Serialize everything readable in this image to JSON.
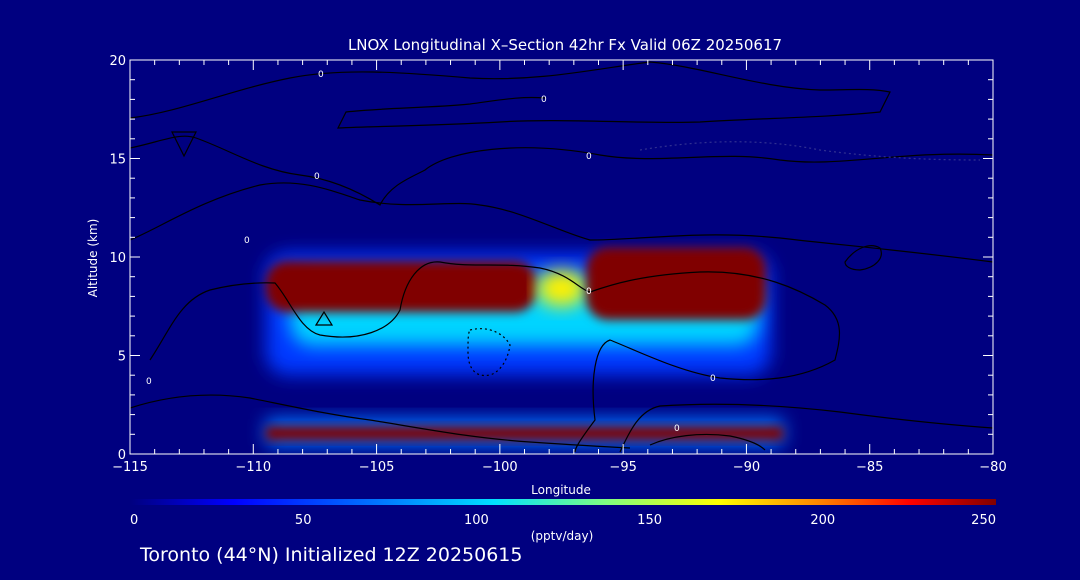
{
  "chart_data": {
    "type": "heatmap",
    "title": "LNOX Longitudinal X–Section 42hr  Fx Valid 06Z 20250617",
    "xlabel": "Longitude",
    "ylabel": "Altitude (km)",
    "xlim": [
      -115,
      -80
    ],
    "ylim": [
      0,
      20
    ],
    "xticks": [
      -115,
      -110,
      -105,
      -100,
      -95,
      -90,
      -85,
      -80
    ],
    "xtick_labels": [
      "−115",
      "−110",
      "−105",
      "−100",
      "−95",
      "−90",
      "−85",
      "−80"
    ],
    "yticks": [
      0,
      5,
      10,
      15,
      20
    ],
    "ytick_labels": [
      "0",
      "5",
      "10",
      "15",
      "20"
    ],
    "colorbar": {
      "min": 0,
      "max": 250,
      "ticks": [
        0,
        50,
        100,
        150,
        200,
        250
      ],
      "tick_labels": [
        "0",
        "50",
        "100",
        "150",
        "200",
        "250"
      ],
      "units": "(pptv/day)",
      "colors": [
        "#00007f",
        "#0000ff",
        "#0080ff",
        "#00e0ff",
        "#80ff80",
        "#ffff00",
        "#ff8000",
        "#ff0000",
        "#800000"
      ]
    },
    "footer": "Toronto (44°N) Initialized 12Z 20250615",
    "contour_labels": [
      "0",
      "0",
      "0",
      "0",
      "0",
      "0",
      "0",
      "0",
      "0"
    ],
    "field_regions": [
      {
        "lon": [
          -109.5,
          -89.0
        ],
        "alt": [
          4.0,
          10.2
        ],
        "value": 45
      },
      {
        "lon": [
          -108.5,
          -89.5
        ],
        "alt": [
          5.5,
          9.0
        ],
        "value": 90
      },
      {
        "lon": [
          -109.5,
          -98.5
        ],
        "alt": [
          7.2,
          9.8
        ],
        "value": 250
      },
      {
        "lon": [
          -98.5,
          -96.5
        ],
        "alt": [
          7.5,
          9.3
        ],
        "value": 160
      },
      {
        "lon": [
          -96.5,
          -89.2
        ],
        "alt": [
          6.8,
          10.5
        ],
        "value": 250
      },
      {
        "lon": [
          -109.5,
          -88.5
        ],
        "alt": [
          0.4,
          1.8
        ],
        "value": 60
      },
      {
        "lon": [
          -109.5,
          -88.5
        ],
        "alt": [
          0.7,
          1.4
        ],
        "value": 250
      }
    ]
  }
}
